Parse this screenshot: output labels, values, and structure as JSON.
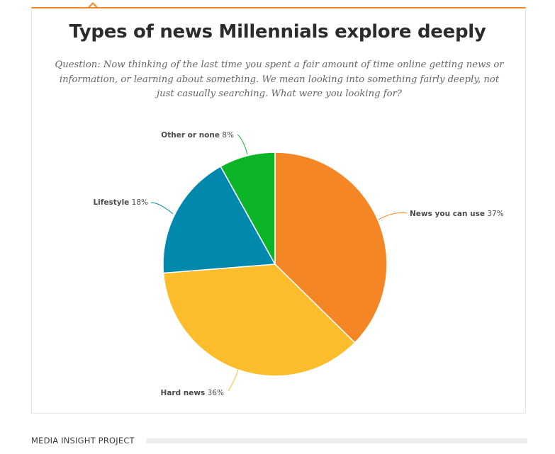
{
  "colors": {
    "accent": "#f0892b",
    "border": "#e6e6e6"
  },
  "chart_data": {
    "type": "pie",
    "title": "Types of news Millennials explore deeply",
    "subtitle": "Question: Now thinking of the last time you spent a fair amount of time online getting news or information, or learning about something. We mean looking into something fairly deeply, not just casually searching. What were you looking for?",
    "categories": [
      "News you can use",
      "Hard news",
      "Lifestyle",
      "Other or none"
    ],
    "values": [
      37,
      36,
      18,
      8
    ],
    "value_labels": [
      "37%",
      "36%",
      "18%",
      "8%"
    ],
    "colors": [
      "#f58625",
      "#fbbd2c",
      "#0089ad",
      "#0cb528"
    ],
    "start_angle": "12 o'clock",
    "direction": "clockwise"
  },
  "footer": {
    "source": "MEDIA INSIGHT PROJECT"
  }
}
